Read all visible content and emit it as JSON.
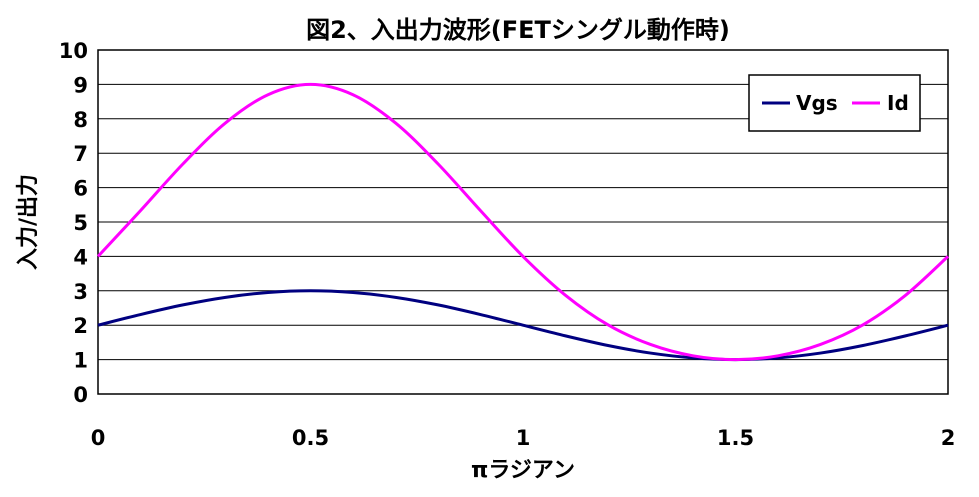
{
  "chart_data": {
    "type": "line",
    "title": "図2、入出力波形(FETシングル動作時)",
    "xlabel": "πラジアン",
    "ylabel": "入力/出力",
    "xlim": [
      0,
      2
    ],
    "ylim": [
      0,
      10
    ],
    "x_ticks": [
      "0",
      "0.5",
      "1",
      "1.5",
      "2"
    ],
    "y_ticks": [
      "0",
      "1",
      "2",
      "3",
      "4",
      "5",
      "6",
      "7",
      "8",
      "9",
      "10"
    ],
    "grid": true,
    "legend_position": "top-right",
    "x": [
      0,
      0.1,
      0.2,
      0.3,
      0.4,
      0.5,
      0.6,
      0.7,
      0.8,
      0.9,
      1.0,
      1.1,
      1.2,
      1.3,
      1.4,
      1.5,
      1.6,
      1.7,
      1.8,
      1.9,
      2.0
    ],
    "series": [
      {
        "name": "Vgs",
        "color": "#000080",
        "values": [
          2.0,
          2.31,
          2.59,
          2.81,
          2.95,
          3.0,
          2.95,
          2.81,
          2.59,
          2.31,
          2.0,
          1.69,
          1.41,
          1.19,
          1.05,
          1.0,
          1.05,
          1.19,
          1.41,
          1.69,
          2.0
        ]
      },
      {
        "name": "Id",
        "color": "#FF00FF",
        "values": [
          4.0,
          5.33,
          6.69,
          7.88,
          8.7,
          9.0,
          8.7,
          7.88,
          6.69,
          5.33,
          4.0,
          2.87,
          2.01,
          1.44,
          1.11,
          1.0,
          1.11,
          1.44,
          2.01,
          2.87,
          4.0
        ]
      }
    ]
  }
}
